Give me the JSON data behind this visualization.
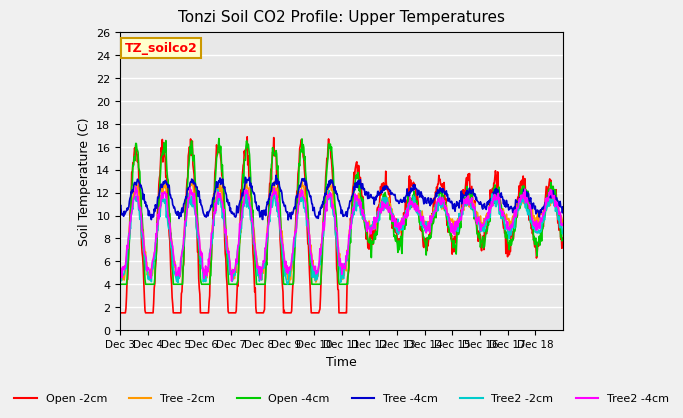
{
  "title": "Tonzi Soil CO2 Profile: Upper Temperatures",
  "ylabel": "Soil Temperature (C)",
  "xlabel": "Time",
  "annotation": "TZ_soilco2",
  "ylim": [
    0,
    26
  ],
  "plot_bg": "#e8e8e8",
  "fig_bg": "#f0f0f0",
  "x_tick_labels": [
    "Dec 3",
    "Dec 4",
    "Dec 5",
    "Dec 6",
    "Dec 7",
    "Dec 8",
    "Dec 9",
    "Dec 10",
    "Dec 11",
    "Dec 12",
    "Dec 13",
    "Dec 14",
    "Dec 15",
    "Dec 16",
    "Dec 17",
    "Dec 18"
  ],
  "legend_entries": [
    "Open -2cm",
    "Tree -2cm",
    "Open -4cm",
    "Tree -4cm",
    "Tree2 -2cm",
    "Tree2 -4cm"
  ],
  "legend_colors": [
    "#ff0000",
    "#ff9900",
    "#00cc00",
    "#0000cc",
    "#00cccc",
    "#ff00ff"
  ],
  "series_colors": [
    "#ff0000",
    "#ff9900",
    "#00cc00",
    "#0000cc",
    "#00cccc",
    "#ff00ff"
  ],
  "n_days": 16,
  "pts_per_day": 48
}
